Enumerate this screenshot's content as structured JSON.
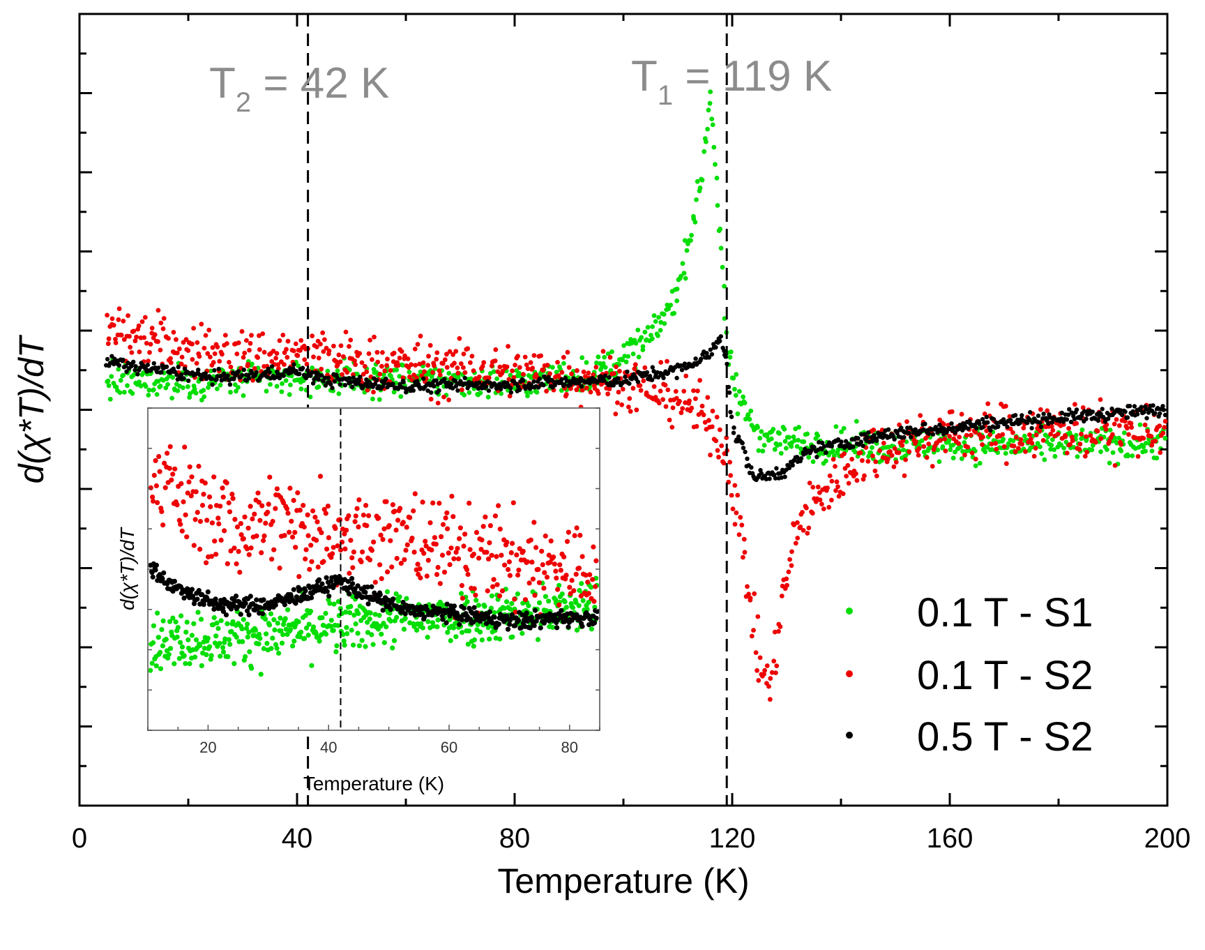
{
  "chart_data": {
    "type": "scatter",
    "title": "",
    "xlabel": "Temperature (K)",
    "ylabel": "d(χ*T)/dT",
    "xlim": [
      0,
      200
    ],
    "ylim": [
      -10,
      10
    ],
    "xticks": [
      0,
      40,
      80,
      120,
      160,
      200
    ],
    "xtick_labels": [
      "0",
      "40",
      "80",
      "120",
      "160",
      "200"
    ],
    "yticks_shown": false,
    "annotations": [
      {
        "name": "T2",
        "main": "T",
        "sub": "2",
        "rest": " = 42 K",
        "x": 42
      },
      {
        "name": "T1",
        "main": "T",
        "sub": "1",
        "rest": " = 119 K",
        "x": 119
      }
    ],
    "legend": {
      "position": "bottom-right",
      "entries": [
        {
          "label": "0.1 T - S1",
          "color": "#00dd00"
        },
        {
          "label": "0.1 T - S2",
          "color": "#ee0000"
        },
        {
          "label": "0.5 T - S2",
          "color": "#000000"
        }
      ]
    },
    "series": [
      {
        "name": "0.1 T - S1",
        "color": "#00dd00",
        "curve": [
          [
            5,
            0.7
          ],
          [
            20,
            0.7
          ],
          [
            40,
            0.8
          ],
          [
            60,
            0.75
          ],
          [
            80,
            0.7
          ],
          [
            95,
            0.9
          ],
          [
            105,
            1.8
          ],
          [
            110,
            3.0
          ],
          [
            114,
            5.5
          ],
          [
            116,
            8.0
          ],
          [
            118,
            4.0
          ],
          [
            119,
            1.5
          ],
          [
            121,
            0.3
          ],
          [
            125,
            -0.6
          ],
          [
            130,
            -0.8
          ],
          [
            140,
            -0.9
          ],
          [
            160,
            -0.9
          ],
          [
            180,
            -0.9
          ],
          [
            200,
            -0.8
          ]
        ],
        "noise": 0.3
      },
      {
        "name": "0.1 T - S2",
        "color": "#ee0000",
        "curve": [
          [
            5,
            2.0
          ],
          [
            12,
            1.8
          ],
          [
            20,
            1.5
          ],
          [
            30,
            1.3
          ],
          [
            40,
            1.4
          ],
          [
            50,
            1.2
          ],
          [
            70,
            1.0
          ],
          [
            90,
            0.9
          ],
          [
            100,
            0.7
          ],
          [
            110,
            0.3
          ],
          [
            116,
            -0.3
          ],
          [
            119,
            -1.0
          ],
          [
            122,
            -3.5
          ],
          [
            125,
            -6.5
          ],
          [
            127,
            -7.0
          ],
          [
            129,
            -5.0
          ],
          [
            132,
            -3.0
          ],
          [
            136,
            -2.2
          ],
          [
            145,
            -1.0
          ],
          [
            160,
            -0.6
          ],
          [
            180,
            -0.5
          ],
          [
            200,
            -0.5
          ]
        ],
        "noise": 0.5
      },
      {
        "name": "0.5 T - S2",
        "color": "#000000",
        "curve": [
          [
            5,
            1.2
          ],
          [
            15,
            1.0
          ],
          [
            25,
            0.8
          ],
          [
            35,
            0.9
          ],
          [
            40,
            1.0
          ],
          [
            45,
            0.75
          ],
          [
            60,
            0.6
          ],
          [
            80,
            0.65
          ],
          [
            100,
            0.75
          ],
          [
            110,
            1.0
          ],
          [
            116,
            1.4
          ],
          [
            118,
            1.9
          ],
          [
            119,
            1.2
          ],
          [
            120,
            -0.5
          ],
          [
            122,
            -1.0
          ],
          [
            124,
            -1.7
          ],
          [
            126,
            -1.7
          ],
          [
            130,
            -1.5
          ],
          [
            135,
            -1.0
          ],
          [
            150,
            -0.6
          ],
          [
            170,
            -0.3
          ],
          [
            190,
            -0.1
          ],
          [
            200,
            0.0
          ]
        ],
        "noise": 0.12
      }
    ],
    "inset": {
      "xlabel": "Temperature (K)",
      "ylabel": "d(χ*T)/dT",
      "xlim": [
        10,
        85
      ],
      "ylim": [
        -4,
        4
      ],
      "xticks": [
        20,
        40,
        60,
        80
      ],
      "xtick_labels": [
        "20",
        "40",
        "60",
        "80"
      ],
      "marker_x": 42,
      "series": [
        {
          "name": "0.1 T - S1",
          "color": "#00dd00",
          "curve": [
            [
              10,
              -1.8
            ],
            [
              30,
              -1.6
            ],
            [
              42,
              -1.4
            ],
            [
              50,
              -1.2
            ],
            [
              60,
              -1.2
            ],
            [
              70,
              -1.1
            ],
            [
              80,
              -1.0
            ],
            [
              85,
              -0.9
            ]
          ],
          "noise": 0.5
        },
        {
          "name": "0.1 T - S2",
          "color": "#ee0000",
          "curve": [
            [
              10,
              2.8
            ],
            [
              15,
              1.8
            ],
            [
              20,
              1.4
            ],
            [
              25,
              1.0
            ],
            [
              30,
              1.2
            ],
            [
              40,
              1.0
            ],
            [
              50,
              0.8
            ],
            [
              60,
              0.5
            ],
            [
              70,
              0.2
            ],
            [
              80,
              0.0
            ],
            [
              85,
              -0.2
            ]
          ],
          "noise": 0.9
        },
        {
          "name": "0.5 T - S2",
          "color": "#000000",
          "curve": [
            [
              10,
              0.1
            ],
            [
              15,
              -0.5
            ],
            [
              22,
              -0.9
            ],
            [
              30,
              -0.9
            ],
            [
              38,
              -0.5
            ],
            [
              42,
              -0.3
            ],
            [
              46,
              -0.6
            ],
            [
              52,
              -1.0
            ],
            [
              60,
              -1.1
            ],
            [
              70,
              -1.3
            ],
            [
              80,
              -1.2
            ],
            [
              85,
              -1.2
            ]
          ],
          "noise": 0.15
        }
      ]
    }
  }
}
